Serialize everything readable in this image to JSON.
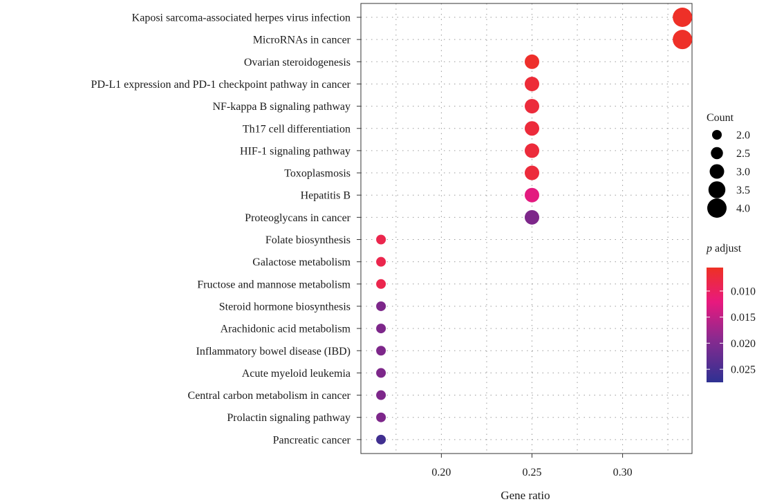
{
  "chart_data": {
    "type": "scatter",
    "xlabel": "Gene ratio",
    "xlim": [
      0.1556,
      0.3383
    ],
    "x_ticks": [
      "0.20",
      "0.25",
      "0.30"
    ],
    "x_tick_values": [
      0.2,
      0.25,
      0.3
    ],
    "x_minor_grid": [
      0.175,
      0.225,
      0.275,
      0.325
    ],
    "grid": true,
    "legend_position": "right",
    "points": [
      {
        "term": "Kaposi sarcoma-associated herpes virus infection",
        "gene_ratio": 0.333,
        "count": 4,
        "p_adjust": 0.0058
      },
      {
        "term": "MicroRNAs in cancer",
        "gene_ratio": 0.333,
        "count": 4,
        "p_adjust": 0.0058
      },
      {
        "term": "Ovarian steroidogenesis",
        "gene_ratio": 0.25,
        "count": 3,
        "p_adjust": 0.006
      },
      {
        "term": "PD-L1 expression and PD-1 checkpoint pathway in cancer",
        "gene_ratio": 0.25,
        "count": 3,
        "p_adjust": 0.007
      },
      {
        "term": "NF-kappa B signaling pathway",
        "gene_ratio": 0.25,
        "count": 3,
        "p_adjust": 0.0072
      },
      {
        "term": "Th17 cell differentiation",
        "gene_ratio": 0.25,
        "count": 3,
        "p_adjust": 0.0072
      },
      {
        "term": "HIF-1 signaling pathway",
        "gene_ratio": 0.25,
        "count": 3,
        "p_adjust": 0.0072
      },
      {
        "term": "Toxoplasmosis",
        "gene_ratio": 0.25,
        "count": 3,
        "p_adjust": 0.0072
      },
      {
        "term": "Hepatitis B",
        "gene_ratio": 0.25,
        "count": 3,
        "p_adjust": 0.0125
      },
      {
        "term": "Proteoglycans in cancer",
        "gene_ratio": 0.25,
        "count": 3,
        "p_adjust": 0.021
      },
      {
        "term": "Folate biosynthesis",
        "gene_ratio": 0.1667,
        "count": 2,
        "p_adjust": 0.0085
      },
      {
        "term": "Galactose metabolism",
        "gene_ratio": 0.1667,
        "count": 2,
        "p_adjust": 0.0085
      },
      {
        "term": "Fructose and mannose metabolism",
        "gene_ratio": 0.1667,
        "count": 2,
        "p_adjust": 0.0085
      },
      {
        "term": "Steroid hormone biosynthesis",
        "gene_ratio": 0.1667,
        "count": 2,
        "p_adjust": 0.021
      },
      {
        "term": "Arachidonic acid metabolism",
        "gene_ratio": 0.1667,
        "count": 2,
        "p_adjust": 0.021
      },
      {
        "term": "Inflammatory bowel disease (IBD)",
        "gene_ratio": 0.1667,
        "count": 2,
        "p_adjust": 0.021
      },
      {
        "term": "Acute myeloid leukemia",
        "gene_ratio": 0.1667,
        "count": 2,
        "p_adjust": 0.021
      },
      {
        "term": "Central carbon metabolism in cancer",
        "gene_ratio": 0.1667,
        "count": 2,
        "p_adjust": 0.021
      },
      {
        "term": "Prolactin signaling pathway",
        "gene_ratio": 0.1667,
        "count": 2,
        "p_adjust": 0.021
      },
      {
        "term": "Pancreatic cancer",
        "gene_ratio": 0.1667,
        "count": 2,
        "p_adjust": 0.026
      }
    ],
    "size_legend": {
      "title": "Count",
      "labels": [
        "2.0",
        "2.5",
        "3.0",
        "3.5",
        "4.0"
      ],
      "values": [
        2.0,
        2.5,
        3.0,
        3.5,
        4.0
      ]
    },
    "color_legend": {
      "title_italic": "p",
      "title_rest": " adjust",
      "labels": [
        "0.010",
        "0.015",
        "0.020",
        "0.025"
      ],
      "values": [
        0.01,
        0.015,
        0.02,
        0.025
      ],
      "range": [
        0.0055,
        0.0275
      ],
      "low_color": "#ee3124",
      "mid_color": "#e8197e",
      "high_color": "#2e3192"
    }
  }
}
